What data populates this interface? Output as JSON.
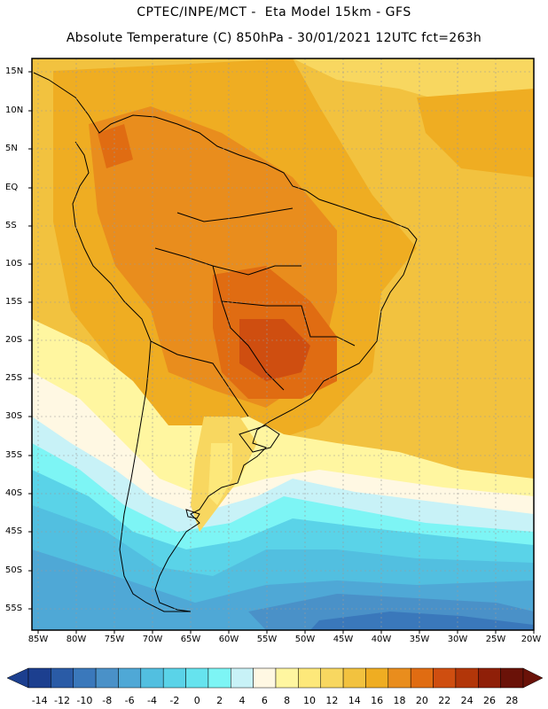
{
  "header": {
    "line1": "CPTEC/INPE/MCT -  Eta Model 15km - GFS",
    "line2": "Absolute Temperature (C) 850hPa - 30/01/2021 12UTC fct=263h"
  },
  "map": {
    "lat_labels": [
      "15N",
      "10N",
      "5N",
      "EQ",
      "5S",
      "10S",
      "15S",
      "20S",
      "25S",
      "30S",
      "35S",
      "40S",
      "45S",
      "50S",
      "55S"
    ],
    "lon_labels": [
      "85W",
      "80W",
      "75W",
      "70W",
      "65W",
      "60W",
      "55W",
      "50W",
      "45W",
      "40W",
      "35W",
      "30W",
      "25W",
      "20W"
    ]
  },
  "colorbar": {
    "labels": [
      "-14",
      "-12",
      "-10",
      "-8",
      "-6",
      "-4",
      "-2",
      "0",
      "2",
      "4",
      "6",
      "8",
      "10",
      "12",
      "14",
      "16",
      "18",
      "20",
      "22",
      "24",
      "26",
      "28"
    ],
    "colors": [
      "#1c3f8f",
      "#2a5ba6",
      "#3a78bb",
      "#4a91c8",
      "#4fa8d6",
      "#52bfe0",
      "#5ad3e8",
      "#66e3ee",
      "#7df5f5",
      "#c8f2f7",
      "#fff8e3",
      "#fff6a0",
      "#fde87a",
      "#f8d760",
      "#f2c23f",
      "#efad22",
      "#e98d1d",
      "#e06c12",
      "#cf4e10",
      "#b23609",
      "#8f1f08",
      "#6a1208"
    ],
    "low_cap": "#1c3f8f",
    "high_cap": "#6a1208"
  }
}
